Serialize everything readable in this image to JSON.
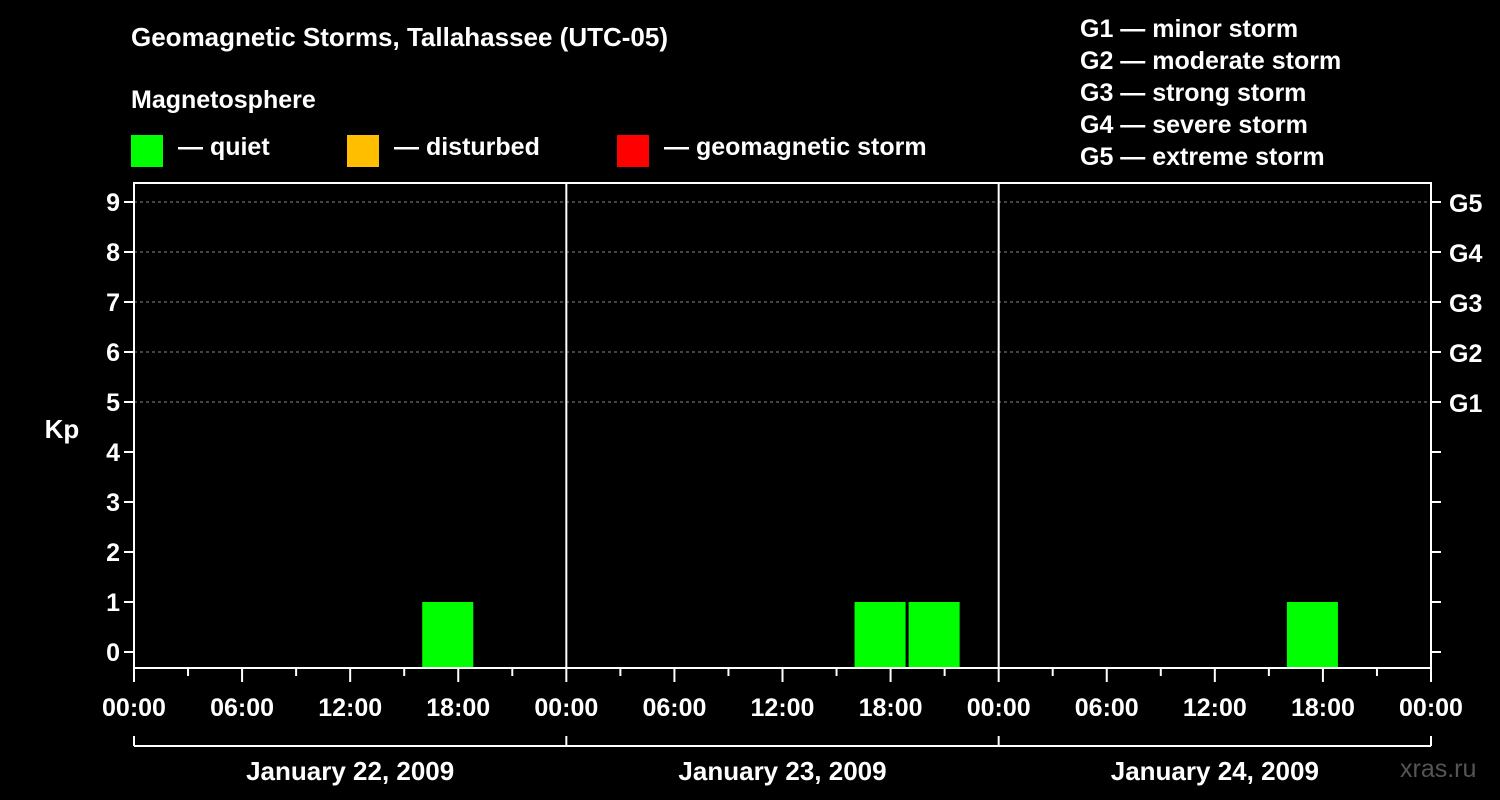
{
  "title": "Geomagnetic Storms, Tallahassee (UTC-05)",
  "magnetosphere": {
    "title": "Magnetosphere",
    "items": [
      {
        "label": "— quiet",
        "color": "#00ff00"
      },
      {
        "label": "— disturbed",
        "color": "#ffbf00"
      },
      {
        "label": "— geomagnetic storm",
        "color": "#ff0000"
      }
    ]
  },
  "storm_levels": [
    "G1 — minor storm",
    "G2 — moderate storm",
    "G3 — strong storm",
    "G4 — severe storm",
    "G5 — extreme storm"
  ],
  "watermark": "xras.ru",
  "chart_data": {
    "type": "bar",
    "ylabel": "Kp",
    "ylim": [
      0,
      9
    ],
    "yticks": [
      "0",
      "1",
      "2",
      "3",
      "4",
      "5",
      "6",
      "7",
      "8",
      "9"
    ],
    "right_ticks": [
      {
        "kp": 5,
        "label": "G1"
      },
      {
        "kp": 6,
        "label": "G2"
      },
      {
        "kp": 7,
        "label": "G3"
      },
      {
        "kp": 8,
        "label": "G4"
      },
      {
        "kp": 9,
        "label": "G5"
      }
    ],
    "grid": "dashed horizontal at Kp 5-9",
    "days": [
      "January 22, 2009",
      "January 23, 2009",
      "January 24, 2009"
    ],
    "xticks": [
      "00:00",
      "06:00",
      "12:00",
      "18:00",
      "00:00",
      "06:00",
      "12:00",
      "18:00",
      "00:00",
      "06:00",
      "12:00",
      "18:00",
      "00:00"
    ],
    "interval_hours": 3,
    "bars": [
      {
        "day": 0,
        "start": "16:00",
        "kp": 1,
        "status": "quiet"
      },
      {
        "day": 1,
        "start": "16:00",
        "kp": 1,
        "status": "quiet"
      },
      {
        "day": 1,
        "start": "19:00",
        "kp": 1,
        "status": "quiet"
      },
      {
        "day": 2,
        "start": "16:00",
        "kp": 1,
        "status": "quiet"
      }
    ]
  }
}
